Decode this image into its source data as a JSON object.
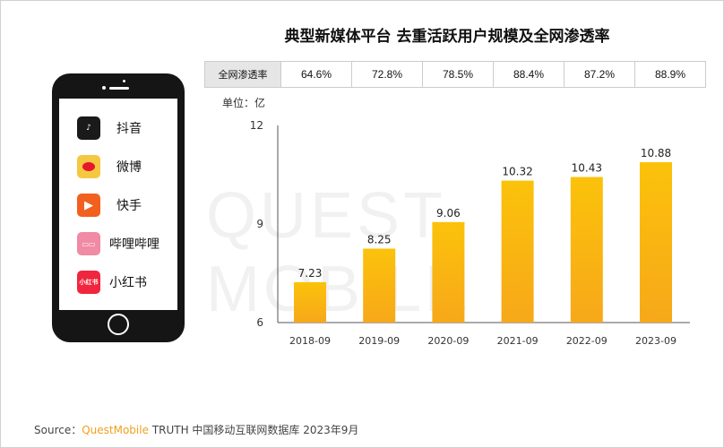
{
  "chart_data": {
    "type": "bar",
    "title": "典型新媒体平台 去重活跃用户规模及全网渗透率",
    "unit_label": "单位：亿",
    "categories": [
      "2018-09",
      "2019-09",
      "2020-09",
      "2021-09",
      "2022-09",
      "2023-09"
    ],
    "values": [
      7.23,
      8.25,
      9.06,
      10.32,
      10.43,
      10.88
    ],
    "data_labels": [
      "7.23",
      "8.25",
      "9.06",
      "10.32",
      "10.43",
      "10.88"
    ],
    "ylim": [
      6,
      12
    ],
    "yticks": [
      "6",
      "9",
      "12"
    ],
    "grid": false,
    "bar_color": "#f9b90a",
    "penetration": {
      "label": "全网渗透率",
      "values": [
        "64.6%",
        "72.8%",
        "78.5%",
        "88.4%",
        "87.2%",
        "88.9%"
      ]
    }
  },
  "apps": [
    {
      "name": "抖音",
      "icon": "douyin-icon",
      "color": "#1a1a1a"
    },
    {
      "name": "微博",
      "icon": "weibo-icon",
      "color": "#f5c842"
    },
    {
      "name": "快手",
      "icon": "kuaishou-icon",
      "color": "#f2601f"
    },
    {
      "name": "哔哩哔哩",
      "icon": "bilibili-icon",
      "color": "#f08aa5"
    },
    {
      "name": "小红书",
      "icon": "xiaohongshu-icon",
      "color": "#f0263f",
      "icon_text": "小红书"
    }
  ],
  "source": {
    "prefix": "Source：",
    "brand": "QuestMobile",
    "rest": "TRUTH 中国移动互联网数据库 2023年9月"
  },
  "watermark": "QUEST MOBILE"
}
